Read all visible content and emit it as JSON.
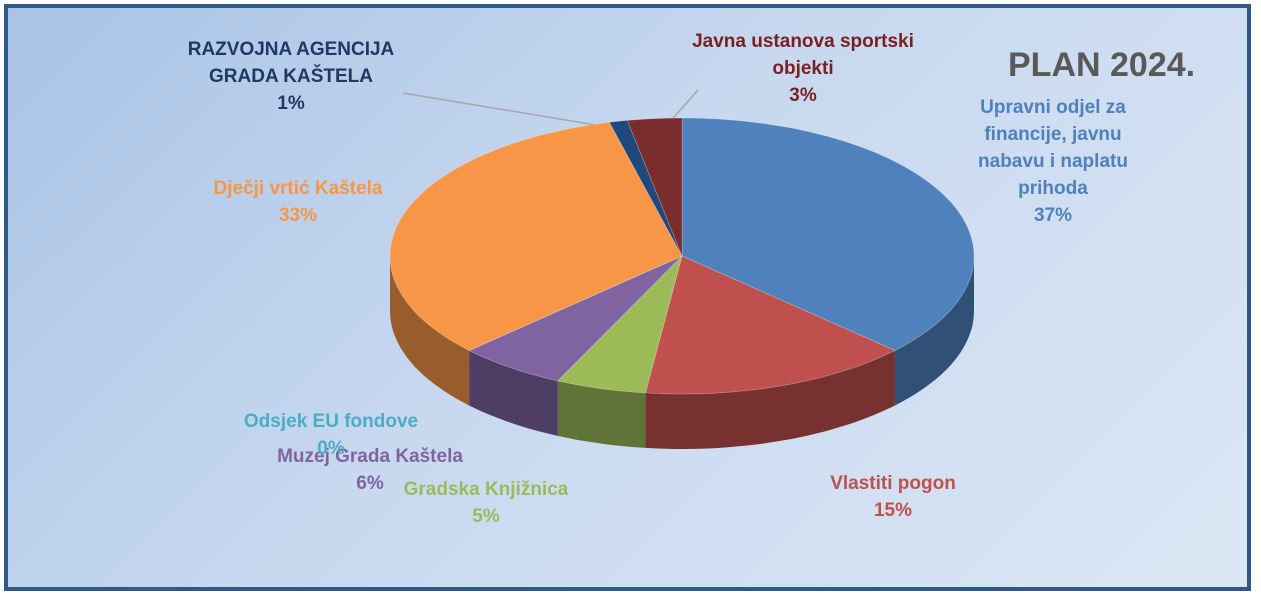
{
  "chart_data": {
    "type": "pie3d",
    "title": "PLAN 2024.",
    "categories": [
      "Upravni odjel za financije, javnu nabavu i naplatu prihoda",
      "Vlastiti pogon",
      "Gradska Knjižnica",
      "Muzej Grada Kaštela",
      "Odsjek  EU fondove",
      "Dječji vrtić Kaštela",
      "RAZVOJNA AGENCIJA GRADA KAŠTELA",
      "Javna ustanova sportski objekti"
    ],
    "values": [
      37,
      15,
      5,
      6,
      0,
      33,
      1,
      3
    ],
    "value_labels": [
      "37%",
      "15%",
      "5%",
      "6%",
      "0%",
      "33%",
      "1%",
      "3%"
    ],
    "colors": [
      "#4f81bd",
      "#c0504d",
      "#9bbb59",
      "#8064a2",
      "#4bacc6",
      "#f79646",
      "#1f497d",
      "#7b2c2c"
    ],
    "label_colors": [
      "#4f81bd",
      "#c0504d",
      "#9bbb59",
      "#8064a2",
      "#4bacc6",
      "#f79646",
      "#1f3864",
      "#7b2020"
    ]
  }
}
